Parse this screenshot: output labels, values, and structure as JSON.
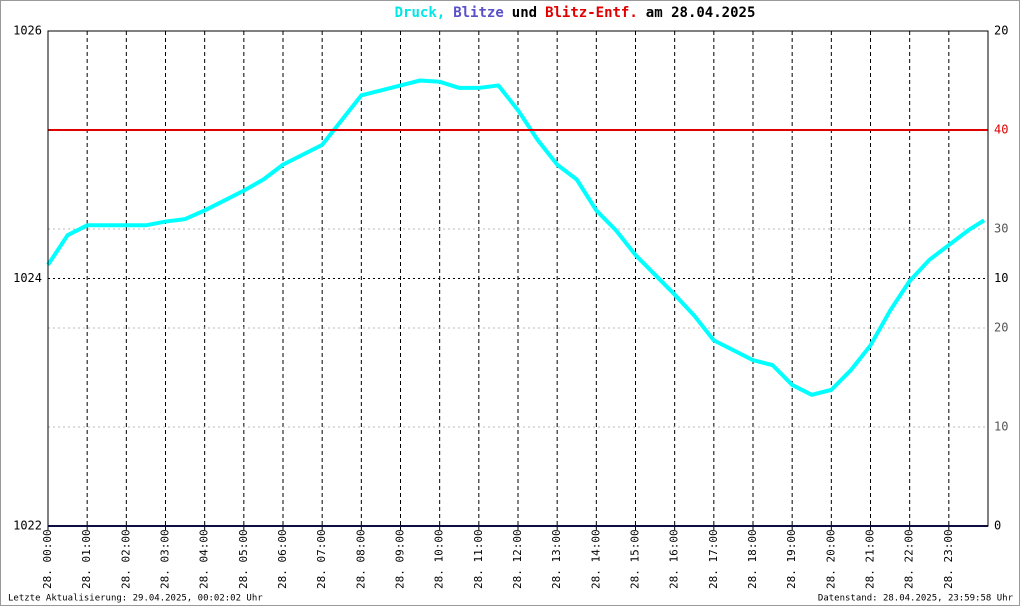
{
  "chart_data": {
    "type": "line",
    "title_parts": [
      {
        "text": "Druck,",
        "color": "#00e5e5"
      },
      {
        "text": "Blitze",
        "color": "#5a50c8"
      },
      {
        "text": "und",
        "color": "#000000"
      },
      {
        "text": "Blitz-Entf.",
        "color": "#e00000"
      },
      {
        "text": "am 28.04.2025",
        "color": "#000000"
      }
    ],
    "footer_left": "Letzte Aktualisierung: 29.04.2025, 00:02:02 Uhr",
    "footer_right": "Datenstand: 28.04.2025, 23:59:58 Uhr",
    "xlim": [
      0,
      24
    ],
    "xticks": [
      {
        "value": 0,
        "label": "28. 00:00"
      },
      {
        "value": 1,
        "label": "28. 01:00"
      },
      {
        "value": 2,
        "label": "28. 02:00"
      },
      {
        "value": 3,
        "label": "28. 03:00"
      },
      {
        "value": 4,
        "label": "28. 04:00"
      },
      {
        "value": 5,
        "label": "28. 05:00"
      },
      {
        "value": 6,
        "label": "28. 06:00"
      },
      {
        "value": 7,
        "label": "28. 07:00"
      },
      {
        "value": 8,
        "label": "28. 08:00"
      },
      {
        "value": 9,
        "label": "28. 09:00"
      },
      {
        "value": 10,
        "label": "28. 10:00"
      },
      {
        "value": 11,
        "label": "28. 11:00"
      },
      {
        "value": 12,
        "label": "28. 12:00"
      },
      {
        "value": 13,
        "label": "28. 13:00"
      },
      {
        "value": 14,
        "label": "28. 14:00"
      },
      {
        "value": 15,
        "label": "28. 15:00"
      },
      {
        "value": 16,
        "label": "28. 16:00"
      },
      {
        "value": 17,
        "label": "28. 17:00"
      },
      {
        "value": 18,
        "label": "28. 18:00"
      },
      {
        "value": 19,
        "label": "28. 19:00"
      },
      {
        "value": 20,
        "label": "28. 20:00"
      },
      {
        "value": 21,
        "label": "28. 21:00"
      },
      {
        "value": 22,
        "label": "28. 22:00"
      },
      {
        "value": 23,
        "label": "28. 23:00"
      }
    ],
    "ylim": [
      1022,
      1026
    ],
    "yticks": [
      1022,
      1024,
      1026
    ],
    "y2lim": [
      0,
      20
    ],
    "y2ticks": [
      0,
      10,
      20
    ],
    "y3lim": [
      0,
      50
    ],
    "y3ticks": [
      10,
      20,
      30,
      40
    ],
    "series": [
      {
        "name": "Druck",
        "color": "#00ffff",
        "axis": "y",
        "x": [
          0,
          0.5,
          1,
          1.5,
          2,
          2.5,
          3,
          3.5,
          4,
          4.5,
          5,
          5.5,
          6,
          6.5,
          7,
          7.5,
          8,
          8.5,
          9,
          9.5,
          10,
          10.5,
          11,
          11.5,
          12,
          12.5,
          13,
          13.5,
          14,
          14.5,
          15,
          15.5,
          16,
          16.5,
          17,
          17.5,
          18,
          18.5,
          19,
          19.5,
          20,
          20.5,
          21,
          21.5,
          22,
          22.5,
          23,
          23.5,
          23.9
        ],
        "values": [
          1024.11,
          1024.35,
          1024.43,
          1024.43,
          1024.43,
          1024.43,
          1024.46,
          1024.48,
          1024.55,
          1024.63,
          1024.71,
          1024.8,
          1024.92,
          1025.0,
          1025.08,
          1025.28,
          1025.48,
          1025.52,
          1025.56,
          1025.6,
          1025.59,
          1025.54,
          1025.54,
          1025.56,
          1025.36,
          1025.12,
          1024.92,
          1024.8,
          1024.55,
          1024.39,
          1024.19,
          1024.03,
          1023.87,
          1023.7,
          1023.5,
          1023.42,
          1023.34,
          1023.3,
          1023.14,
          1023.06,
          1023.1,
          1023.26,
          1023.46,
          1023.74,
          1023.98,
          1024.15,
          1024.27,
          1024.39,
          1024.47
        ]
      },
      {
        "name": "Blitze",
        "color": "#1a1a80",
        "axis": "y2",
        "x": [
          0,
          24
        ],
        "values": [
          0,
          0
        ]
      },
      {
        "name": "Blitz-Entf.",
        "color": "#e00000",
        "axis": "y3",
        "x": [
          0,
          24
        ],
        "values": [
          40,
          40
        ]
      }
    ],
    "grid": true
  }
}
